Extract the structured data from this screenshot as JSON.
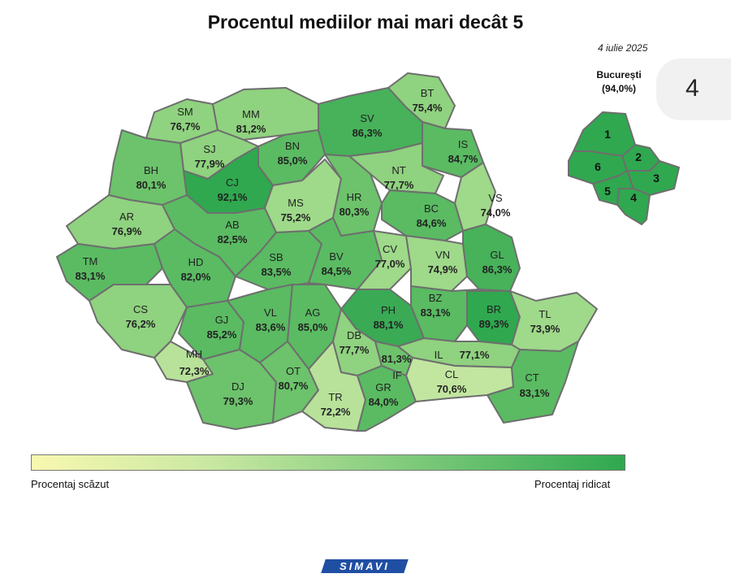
{
  "title": "Procentul mediilor mai mari decât 5",
  "date": "4 iulie 2025",
  "bucharest": {
    "name": "București",
    "value": "(94,0%)",
    "sectors": [
      "1",
      "2",
      "3",
      "4",
      "5",
      "6"
    ]
  },
  "side_tab": "4",
  "legend": {
    "low": "Procentaj scăzut",
    "high": "Procentaj ridicat"
  },
  "logo": "SIMAVI",
  "colors": {
    "low": "#f8f8b0",
    "mid": "#9fd98a",
    "high": "#2fa84f",
    "border": "#6e6e6e"
  },
  "counties": [
    {
      "code": "SM",
      "value": "76,7%"
    },
    {
      "code": "MM",
      "value": "81,2%"
    },
    {
      "code": "BT",
      "value": "75,4%"
    },
    {
      "code": "SV",
      "value": "86,3%"
    },
    {
      "code": "SJ",
      "value": "77,9%"
    },
    {
      "code": "BN",
      "value": "85,0%"
    },
    {
      "code": "IS",
      "value": "84,7%"
    },
    {
      "code": "BH",
      "value": "80,1%"
    },
    {
      "code": "CJ",
      "value": "92,1%"
    },
    {
      "code": "NT",
      "value": "77,7%"
    },
    {
      "code": "VS",
      "value": "74,0%"
    },
    {
      "code": "MS",
      "value": "75,2%"
    },
    {
      "code": "HR",
      "value": "80,3%"
    },
    {
      "code": "BC",
      "value": "84,6%"
    },
    {
      "code": "AR",
      "value": "76,9%"
    },
    {
      "code": "AB",
      "value": "82,5%"
    },
    {
      "code": "TM",
      "value": "83,1%"
    },
    {
      "code": "HD",
      "value": "82,0%"
    },
    {
      "code": "SB",
      "value": "83,5%"
    },
    {
      "code": "BV",
      "value": "84,5%"
    },
    {
      "code": "CV",
      "value": "77,0%"
    },
    {
      "code": "VN",
      "value": "74,9%"
    },
    {
      "code": "GL",
      "value": "86,3%"
    },
    {
      "code": "CS",
      "value": "76,2%"
    },
    {
      "code": "GJ",
      "value": "85,2%"
    },
    {
      "code": "VL",
      "value": "83,6%"
    },
    {
      "code": "AG",
      "value": "85,0%"
    },
    {
      "code": "PH",
      "value": "88,1%"
    },
    {
      "code": "BZ",
      "value": "83,1%"
    },
    {
      "code": "BR",
      "value": "89,3%"
    },
    {
      "code": "TL",
      "value": "73,9%"
    },
    {
      "code": "MH",
      "value": "72,3%"
    },
    {
      "code": "DB",
      "value": "77,7%"
    },
    {
      "code": "IF",
      "value": "81,3%"
    },
    {
      "code": "IL",
      "value": "77,1%"
    },
    {
      "code": "DJ",
      "value": "79,3%"
    },
    {
      "code": "OT",
      "value": "80,7%"
    },
    {
      "code": "TR",
      "value": "72,2%"
    },
    {
      "code": "GR",
      "value": "84,0%"
    },
    {
      "code": "CL",
      "value": "70,6%"
    },
    {
      "code": "CT",
      "value": "83,1%"
    }
  ]
}
